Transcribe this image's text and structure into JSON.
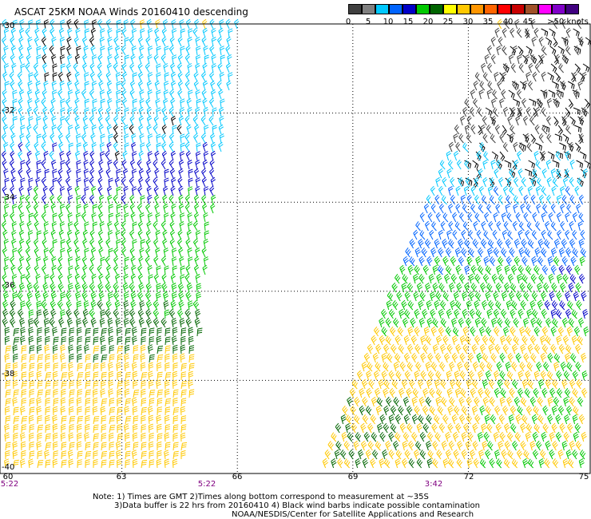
{
  "title": "ASCAT 25KM NOAA Winds 20160410 descending",
  "legend": {
    "labels": [
      "0",
      "5",
      "10",
      "15",
      "20",
      "25",
      "30",
      "35",
      "40",
      "45",
      ">50 knots"
    ],
    "colors": [
      "#404040",
      "#808080",
      "#00c8ff",
      "#0064ff",
      "#0000c8",
      "#00c800",
      "#006400",
      "#ffff00",
      "#ffc800",
      "#ff9600",
      "#ff6400",
      "#ff0000",
      "#c80000",
      "#a05028",
      "#ff00ff",
      "#8000c8",
      "#400080"
    ]
  },
  "axes": {
    "lat_labels": [
      "-30",
      "-32",
      "-34",
      "-36",
      "-38",
      "-40"
    ],
    "lon_labels": [
      "60",
      "63",
      "66",
      "69",
      "72",
      "75"
    ]
  },
  "pass_times": [
    "5:22",
    "5:22",
    "3:42"
  ],
  "notes": {
    "line1": "Note: 1) Times are GMT 2)Times along bottom correspond to measurement at ~35S",
    "line2": "3)Data buffer is 22 hrs from 20160410 4) Black wind barbs indicate possible contamination",
    "line3": "NOAA/NESDIS/Center for Satellite Applications and Research"
  },
  "swath_speed_zones": {
    "left": [
      {
        "lat_range": [
          "-30",
          "-31"
        ],
        "color": "#00c8ff",
        "contaminated_patch": true
      },
      {
        "lat_range": [
          "-31",
          "-33.5"
        ],
        "color": "#00c8ff"
      },
      {
        "lat_range": [
          "-33",
          "-34.5"
        ],
        "color": "#0000c8"
      },
      {
        "lat_range": [
          "-34",
          "-37"
        ],
        "color": "#00c800"
      },
      {
        "lat_range": [
          "-36.5",
          "-38"
        ],
        "color": "#006400"
      },
      {
        "lat_range": [
          "-37.5",
          "-40"
        ],
        "color": "#ffc800"
      }
    ],
    "right": [
      {
        "lat_range": [
          "-30",
          "-33.5"
        ],
        "color": "#404040",
        "contaminated_patch": true
      },
      {
        "lat_range": [
          "-33",
          "-34"
        ],
        "color": "#00c8ff"
      },
      {
        "lat_range": [
          "-34",
          "-35.5"
        ],
        "color": "#0064ff"
      },
      {
        "lat_range": [
          "-35.5",
          "-37"
        ],
        "color": "#00c800"
      },
      {
        "lat_range": [
          "-37",
          "-40"
        ],
        "color": "#ffc800"
      }
    ]
  }
}
